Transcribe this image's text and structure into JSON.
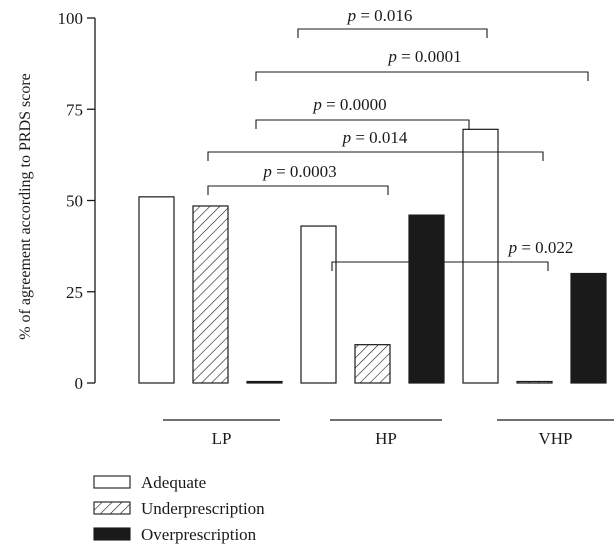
{
  "chart_data": {
    "type": "bar",
    "ylabel": "% of agreement according to PRDS score",
    "ylim": [
      0,
      100
    ],
    "yticks": [
      "0",
      "25",
      "50",
      "75",
      "100"
    ],
    "categories": [
      "LP",
      "HP",
      "VHP"
    ],
    "series": [
      {
        "name": "Adequate",
        "pattern": "outline",
        "values": [
          51,
          43,
          69.5
        ]
      },
      {
        "name": "Underprescription",
        "pattern": "hatch",
        "values": [
          48.5,
          10.5,
          0
        ]
      },
      {
        "name": "Overprescription",
        "pattern": "solid",
        "values": [
          0,
          46,
          30
        ]
      }
    ],
    "comparisons": [
      {
        "label": "p = 0.016",
        "from": [
          0,
          2
        ],
        "to": [
          1,
          1
        ]
      },
      {
        "label": "p = 0.0001",
        "from": [
          0,
          1
        ],
        "to": [
          2,
          1
        ]
      },
      {
        "label": "p = 0.0000",
        "from": [
          0,
          1
        ],
        "to": [
          1,
          2
        ]
      },
      {
        "label": "p = 0.014",
        "from": [
          0,
          0
        ],
        "to": [
          2,
          0
        ]
      },
      {
        "label": "p = 0.0003",
        "from": [
          0,
          1
        ],
        "to": [
          1,
          1
        ]
      },
      {
        "label": "p = 0.022",
        "from": [
          1,
          0
        ],
        "to": [
          2,
          0
        ]
      }
    ]
  },
  "colors": {
    "bar_fill_solid": "#1a1a1a",
    "bar_outline": "#1a1a1a",
    "background": "#ffffff"
  }
}
